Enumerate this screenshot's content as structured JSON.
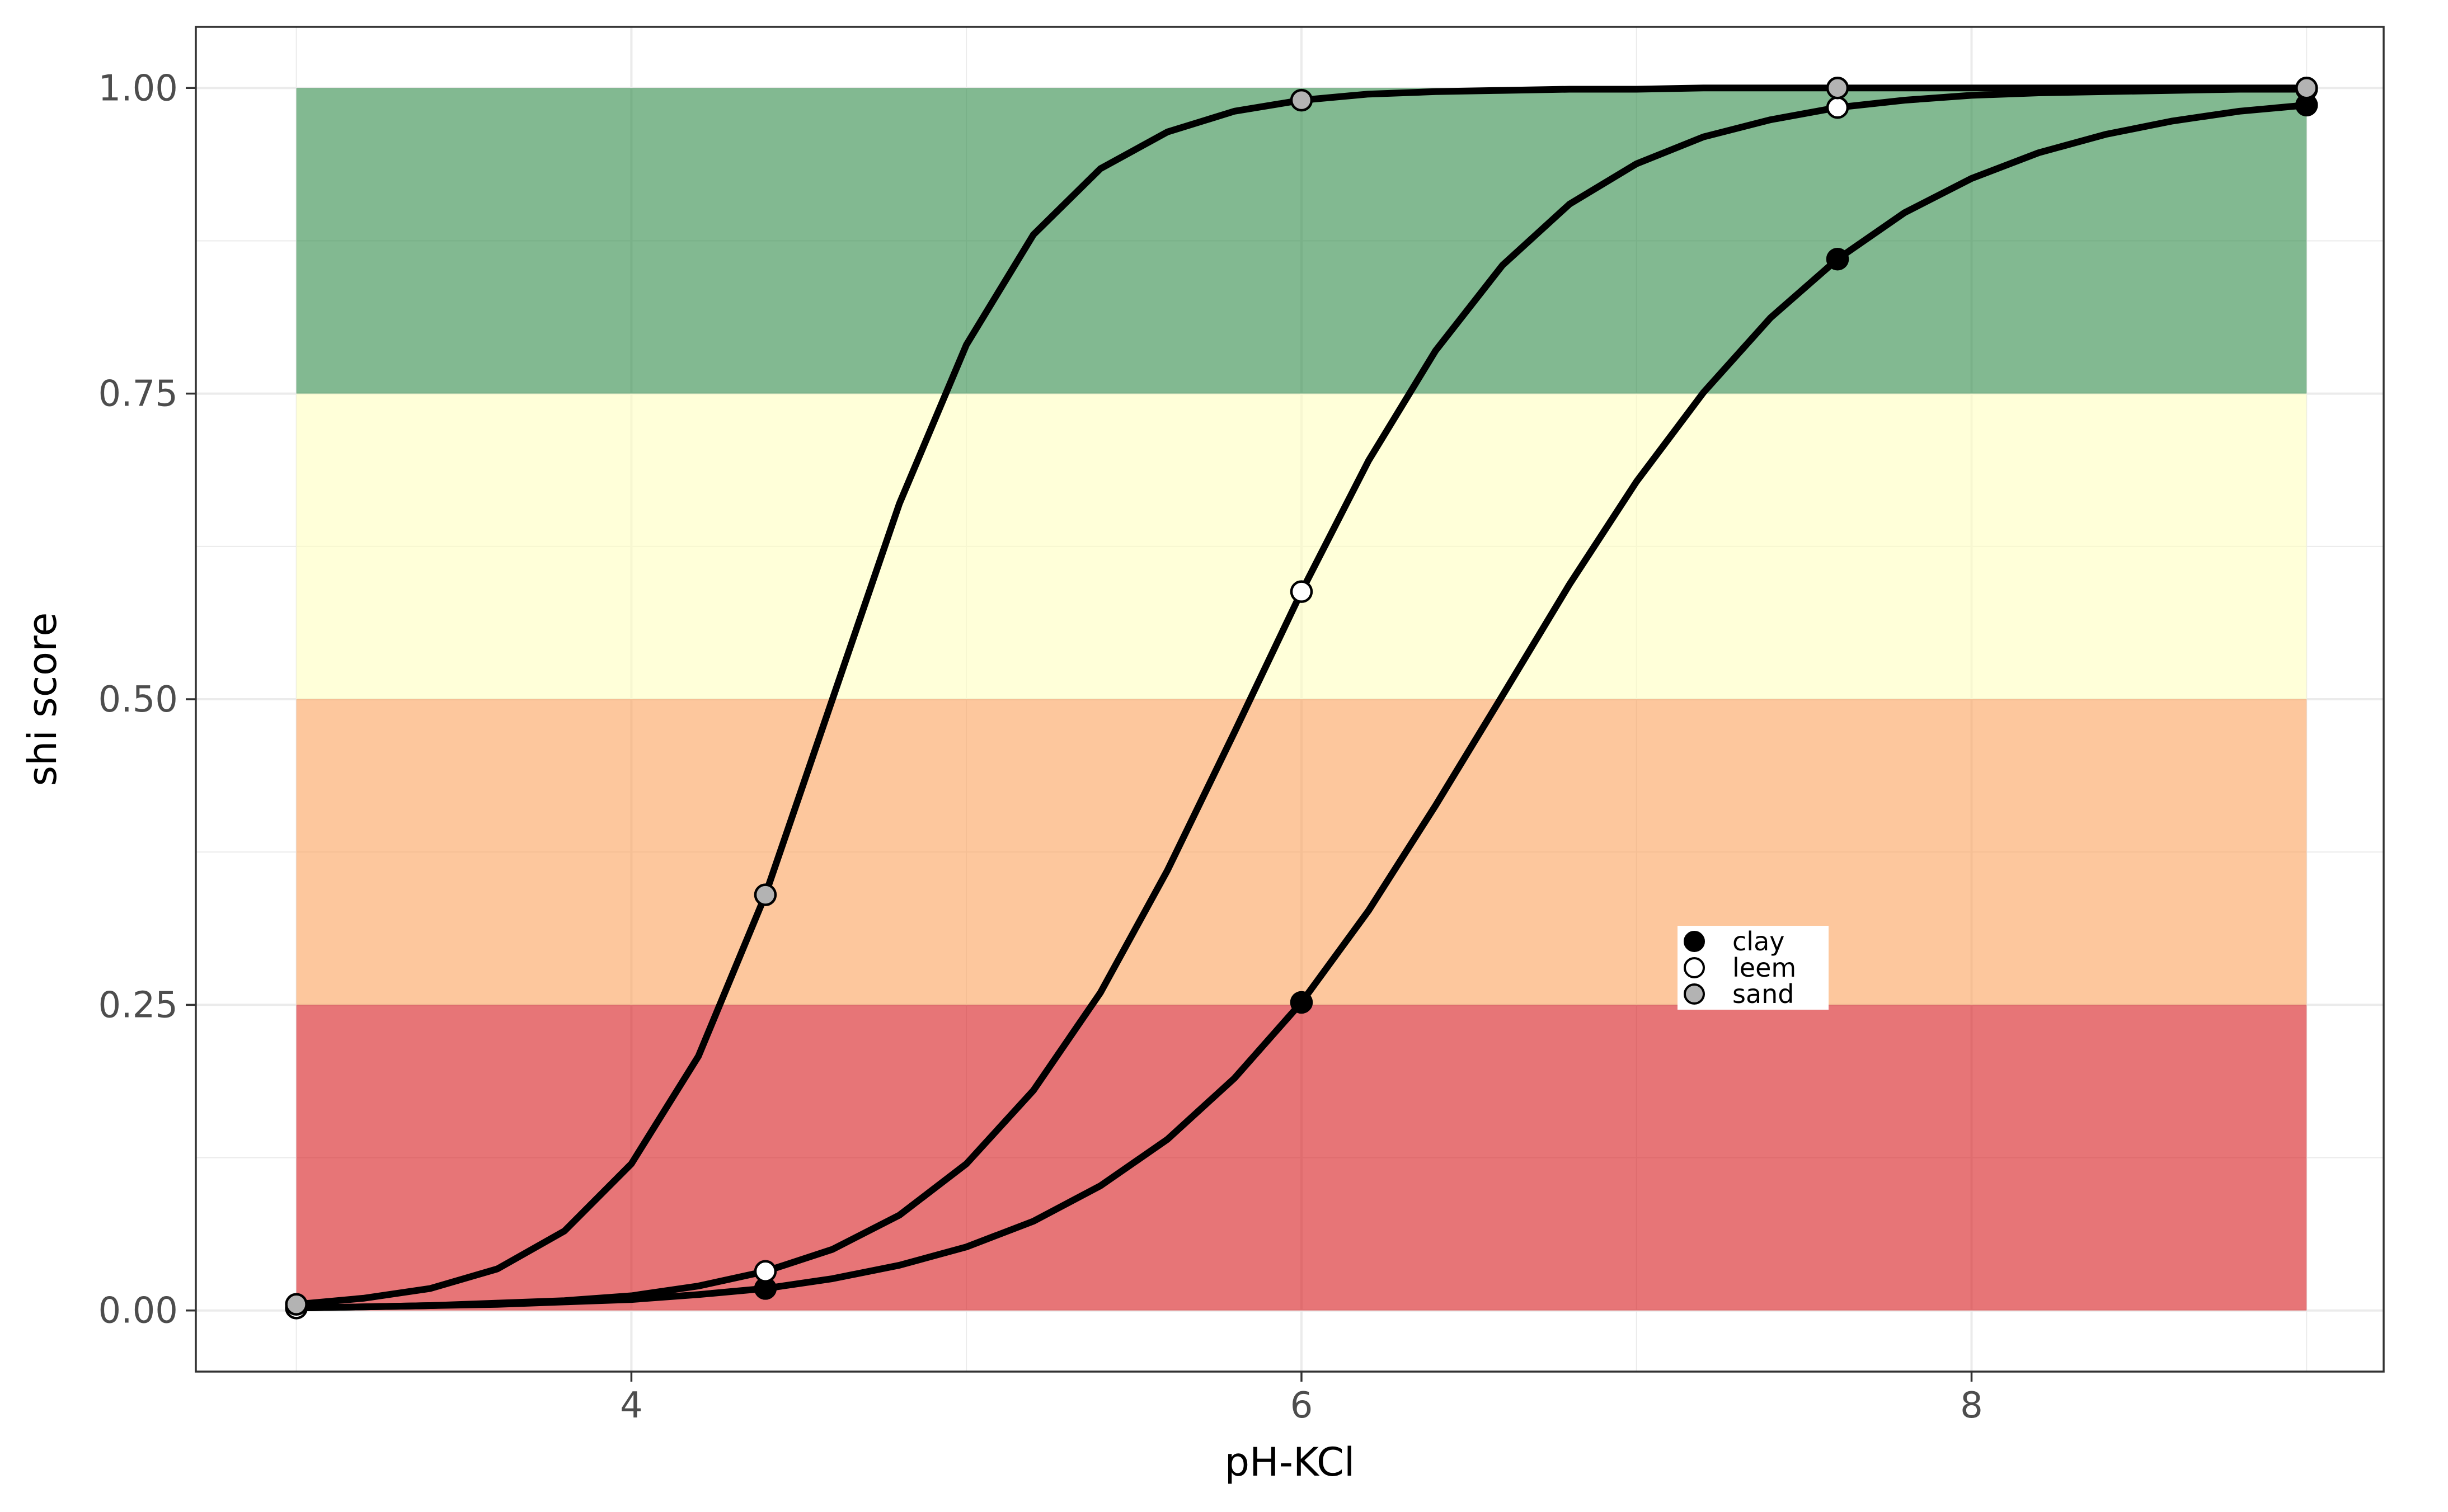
{
  "chart_data": {
    "type": "line",
    "title": "",
    "xlabel": "pH-KCl",
    "ylabel": "shi score",
    "xlim": [
      2.7,
      9.23
    ],
    "ylim": [
      -0.05,
      1.05
    ],
    "x_ticks": [
      4,
      6,
      8
    ],
    "x_tick_labels": [
      "4",
      "6",
      "8"
    ],
    "y_ticks": [
      0,
      0.25,
      0.5,
      0.75,
      1
    ],
    "y_tick_labels": [
      "0.00",
      "0.25",
      "0.50",
      "0.75",
      "1.00"
    ],
    "grid": true,
    "legend_position": "inside-center-right",
    "bands": [
      {
        "from": 0.75,
        "to": 1.0,
        "color": "#2e8b47"
      },
      {
        "from": 0.5,
        "to": 0.75,
        "color": "#ffffc0"
      },
      {
        "from": 0.25,
        "to": 0.5,
        "color": "#fba15b"
      },
      {
        "from": 0.0,
        "to": 0.25,
        "color": "#d7191c"
      }
    ],
    "band_x_range": [
      3,
      9
    ],
    "series": [
      {
        "name": "clay",
        "marker_fill": "#000000",
        "x": [
          3,
          3.2,
          3.4,
          3.6,
          3.8,
          4,
          4.2,
          4.4,
          4.6,
          4.8,
          5,
          5.2,
          5.4,
          5.6,
          5.8,
          6,
          6.2,
          6.4,
          6.6,
          6.8,
          7,
          7.2,
          7.4,
          7.6,
          7.8,
          8,
          8.2,
          8.4,
          8.6,
          8.8,
          9
        ],
        "y": [
          0.002,
          0.003,
          0.004,
          0.005,
          0.007,
          0.009,
          0.013,
          0.018,
          0.026,
          0.037,
          0.052,
          0.073,
          0.102,
          0.14,
          0.19,
          0.252,
          0.327,
          0.413,
          0.503,
          0.594,
          0.678,
          0.751,
          0.812,
          0.86,
          0.898,
          0.926,
          0.947,
          0.962,
          0.973,
          0.981,
          0.986
        ],
        "points_x": [
          3,
          4.4,
          6,
          7.6,
          9
        ],
        "points_y": [
          0.002,
          0.018,
          0.252,
          0.86,
          0.986
        ]
      },
      {
        "name": "leem",
        "marker_fill": "#ffffff",
        "x": [
          3,
          3.2,
          3.4,
          3.6,
          3.8,
          4,
          4.2,
          4.4,
          4.6,
          4.8,
          5,
          5.2,
          5.4,
          5.6,
          5.8,
          6,
          6.2,
          6.4,
          6.6,
          6.8,
          7,
          7.2,
          7.4,
          7.6,
          7.8,
          8,
          8.2,
          8.4,
          8.6,
          8.8,
          9
        ],
        "y": [
          0.002,
          0.003,
          0.004,
          0.006,
          0.008,
          0.012,
          0.02,
          0.032,
          0.05,
          0.078,
          0.12,
          0.18,
          0.26,
          0.36,
          0.473,
          0.588,
          0.695,
          0.785,
          0.855,
          0.905,
          0.938,
          0.96,
          0.974,
          0.984,
          0.99,
          0.994,
          0.996,
          0.997,
          0.998,
          0.999,
          0.999
        ],
        "points_x": [
          3,
          4.4,
          6,
          7.6,
          9
        ],
        "points_y": [
          0.002,
          0.032,
          0.588,
          0.984,
          0.999
        ]
      },
      {
        "name": "sand",
        "marker_fill": "#b3b3b3",
        "x": [
          3,
          3.2,
          3.4,
          3.6,
          3.8,
          4,
          4.2,
          4.4,
          4.6,
          4.8,
          5,
          5.2,
          5.4,
          5.6,
          5.8,
          6,
          6.2,
          6.4,
          6.6,
          6.8,
          7,
          7.2,
          7.4,
          7.6,
          7.8,
          8,
          8.2,
          8.4,
          8.6,
          8.8,
          9
        ],
        "y": [
          0.005,
          0.01,
          0.018,
          0.034,
          0.065,
          0.12,
          0.208,
          0.34,
          0.5,
          0.66,
          0.79,
          0.88,
          0.934,
          0.964,
          0.981,
          0.99,
          0.995,
          0.997,
          0.998,
          0.999,
          0.999,
          1.0,
          1.0,
          1.0,
          1.0,
          1.0,
          1.0,
          1.0,
          1.0,
          1.0,
          1.0
        ],
        "points_x": [
          3,
          4.4,
          6,
          7.6,
          9
        ],
        "points_y": [
          0.005,
          0.34,
          0.99,
          1.0,
          1.0
        ]
      }
    ]
  }
}
